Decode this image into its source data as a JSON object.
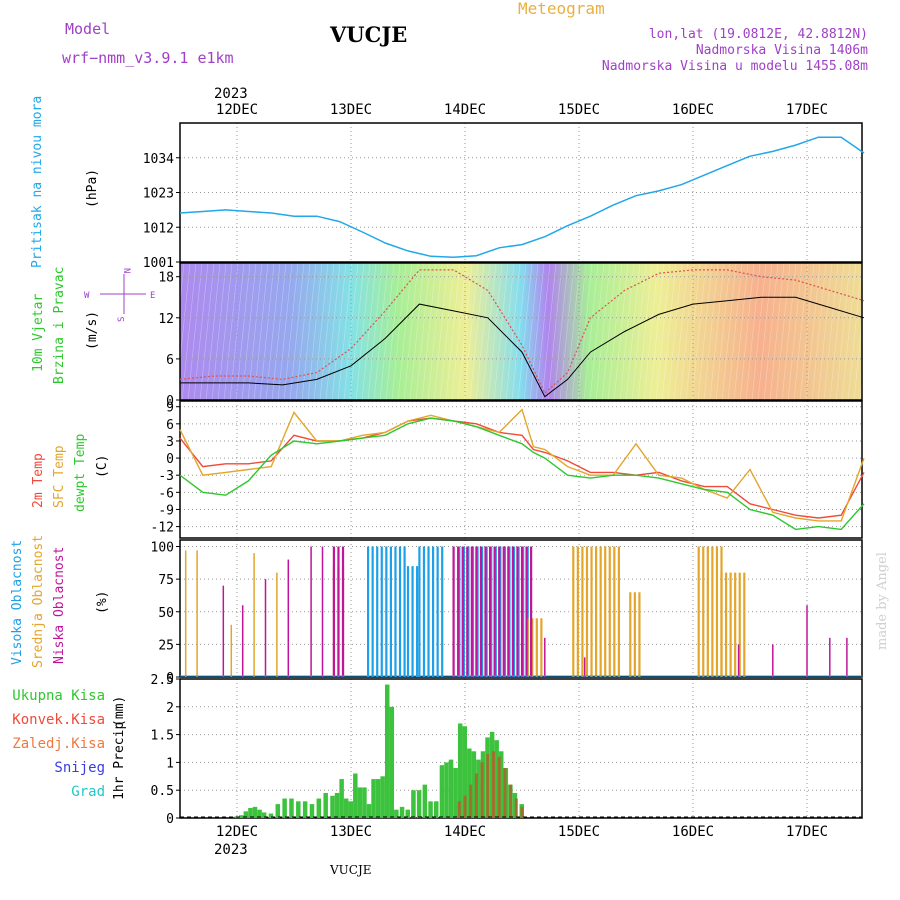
{
  "header": {
    "model_label": "Model",
    "model_name": "wrf−nmm_v3.9.1  e1km",
    "station": "VUCJE",
    "product": "Meteogram",
    "lonlat": "lon,lat (19.0812E, 42.8812N)",
    "elevation": "Nadmorska Visina 1406m",
    "model_elevation": "Nadmorska Visina u modelu 1455.08m",
    "year_top": "2023",
    "year_bottom": "2023",
    "bottom_station": "VUCJE",
    "watermark": "made by Angel"
  },
  "colors": {
    "pressure": "#22a7e8",
    "temp": "#f04a3a",
    "sfc": "#e3a52c",
    "dew": "#2ec82e",
    "high": "#1ea0e8",
    "mid": "#e3a52c",
    "low": "#c0149a",
    "rain": "#3cc23c",
    "conv": "#b0602a",
    "purple": "#a040c8"
  },
  "chart_data": [
    {
      "type": "line",
      "panel": "pressure",
      "ylabel_line1": "Pritisak na nivou mora",
      "ylabel_line2": "(hPa)",
      "x_days": [
        "12DEC",
        "13DEC",
        "14DEC",
        "15DEC",
        "16DEC",
        "17DEC"
      ],
      "ylim": [
        1001,
        1045
      ],
      "yticks": [
        1001,
        1012,
        1023,
        1034
      ],
      "series": [
        {
          "x": [
            -0.5,
            -0.3,
            -0.1,
            0.1,
            0.3,
            0.5,
            0.7,
            0.9,
            1.1,
            1.3,
            1.5,
            1.7,
            1.9,
            2.1,
            2.3,
            2.5,
            2.7,
            2.9,
            3.1,
            3.3,
            3.5,
            3.7,
            3.9,
            4.1,
            4.3,
            4.5,
            4.7,
            4.9,
            5.1,
            5.3,
            5.5
          ],
          "values": [
            1016.5,
            1017,
            1017.5,
            1017,
            1016.5,
            1015.5,
            1015.5,
            1013.8,
            1010.5,
            1007,
            1004.5,
            1002.8,
            1002.5,
            1003,
            1005.5,
            1006.5,
            1009,
            1012.5,
            1015.5,
            1019,
            1022,
            1023.5,
            1025.5,
            1028.5,
            1031.5,
            1034.5,
            1036,
            1038,
            1040.5,
            1040.5,
            1035.5
          ]
        }
      ]
    },
    {
      "type": "line",
      "panel": "wind",
      "ylabel_line1": "10m Vjetar",
      "ylabel_line2": "Brzina i Pravac",
      "ylabel_line3": "(m/s)",
      "compass_left": "W",
      "compass_right": "E",
      "compass_top": "N",
      "compass_bottom": "S",
      "ylim": [
        0,
        20
      ],
      "yticks": [
        0,
        6,
        12,
        18
      ],
      "series": [
        {
          "name": "speed",
          "x": [
            -0.5,
            -0.2,
            0.1,
            0.4,
            0.7,
            1.0,
            1.3,
            1.6,
            1.9,
            2.2,
            2.5,
            2.7,
            2.9,
            3.1,
            3.4,
            3.7,
            4.0,
            4.3,
            4.6,
            4.9,
            5.2,
            5.5
          ],
          "values": [
            2.5,
            2.5,
            2.5,
            2.2,
            3,
            5,
            9,
            14,
            13,
            12,
            7,
            0.5,
            3,
            7,
            10,
            12.5,
            14,
            14.5,
            15,
            15,
            13.5,
            12
          ]
        },
        {
          "name": "gust",
          "x": [
            -0.5,
            -0.2,
            0.1,
            0.4,
            0.7,
            1.0,
            1.3,
            1.6,
            1.9,
            2.2,
            2.5,
            2.7,
            2.9,
            3.1,
            3.4,
            3.7,
            4.0,
            4.3,
            4.6,
            4.9,
            5.2,
            5.5
          ],
          "values": [
            3,
            3.5,
            3.5,
            3,
            4,
            7.5,
            13,
            19,
            19,
            16,
            8,
            1,
            4,
            12,
            16,
            18.5,
            19,
            19,
            18,
            17.5,
            16,
            14.5
          ]
        }
      ]
    },
    {
      "type": "line",
      "panel": "temperature",
      "ylabel_2m": "2m Temp",
      "ylabel_sfc": "SFC Temp",
      "ylabel_dew": "dewpt Temp",
      "ylabel_unit": "(C)",
      "ylim": [
        -14,
        10
      ],
      "yticks": [
        -12,
        -9,
        -6,
        -3,
        0,
        3,
        6,
        9
      ],
      "series": [
        {
          "name": "2m",
          "x": [
            -0.5,
            -0.3,
            -0.1,
            0.1,
            0.3,
            0.5,
            0.7,
            0.9,
            1.1,
            1.3,
            1.5,
            1.7,
            1.9,
            2.1,
            2.3,
            2.5,
            2.6,
            2.7,
            2.9,
            3.1,
            3.3,
            3.5,
            3.7,
            3.9,
            4.1,
            4.3,
            4.5,
            4.7,
            4.9,
            5.1,
            5.3,
            5.5
          ],
          "values": [
            3.5,
            -1.5,
            -1,
            -1,
            -0.5,
            4,
            3,
            3,
            3.5,
            4.5,
            6.5,
            7,
            6.5,
            6,
            4.5,
            4,
            1.5,
            1,
            -0.5,
            -2.5,
            -2.5,
            -3,
            -2.5,
            -4,
            -5,
            -5,
            -8,
            -9,
            -10,
            -10.5,
            -10,
            -2.5
          ]
        },
        {
          "name": "sfc",
          "x": [
            -0.5,
            -0.3,
            -0.1,
            0.1,
            0.3,
            0.5,
            0.7,
            0.9,
            1.1,
            1.3,
            1.5,
            1.7,
            1.9,
            2.1,
            2.3,
            2.5,
            2.6,
            2.7,
            2.9,
            3.1,
            3.3,
            3.5,
            3.7,
            3.9,
            4.1,
            4.3,
            4.5,
            4.7,
            4.9,
            5.1,
            5.3,
            5.5
          ],
          "values": [
            5,
            -3,
            -2.5,
            -2,
            -1.5,
            8,
            3,
            3,
            4,
            4.5,
            6.5,
            7.5,
            6.5,
            5.5,
            4.5,
            8.5,
            2,
            1.5,
            -1.5,
            -3,
            -3,
            2.5,
            -3,
            -3.5,
            -5.5,
            -7,
            -2,
            -9.5,
            -10.5,
            -11,
            -11,
            0
          ]
        },
        {
          "name": "dewpt",
          "x": [
            -0.5,
            -0.3,
            -0.1,
            0.1,
            0.3,
            0.5,
            0.7,
            0.9,
            1.1,
            1.3,
            1.5,
            1.7,
            1.9,
            2.1,
            2.3,
            2.5,
            2.6,
            2.7,
            2.9,
            3.1,
            3.3,
            3.5,
            3.7,
            3.9,
            4.1,
            4.3,
            4.5,
            4.7,
            4.9,
            5.1,
            5.3,
            5.5
          ],
          "values": [
            -3,
            -6,
            -6.5,
            -4,
            0.5,
            3,
            2.5,
            3,
            3.5,
            4,
            6,
            7,
            6.5,
            5.5,
            4,
            2.5,
            1,
            0,
            -3,
            -3.5,
            -3,
            -3,
            -3.5,
            -4.5,
            -5.5,
            -6,
            -9,
            -10,
            -12.5,
            -12,
            -12.5,
            -8
          ]
        }
      ]
    },
    {
      "type": "bar",
      "panel": "cloud",
      "ylabel_high": "Visoka Oblacnost",
      "ylabel_mid": "Srednja Oblacnost",
      "ylabel_low": "Niska Oblacnost",
      "ylabel_unit": "(%)",
      "ylim": [
        0,
        105
      ],
      "yticks": [
        0,
        25,
        50,
        75,
        100
      ],
      "series": [
        {
          "name": "high",
          "segments": [
            [
              1.15,
              1.5,
              100
            ],
            [
              1.5,
              1.6,
              85
            ],
            [
              1.6,
              1.8,
              100
            ],
            [
              1.95,
              2.55,
              100
            ]
          ]
        },
        {
          "name": "mid",
          "segments": [
            [
              -0.45,
              -0.45,
              97
            ],
            [
              -0.35,
              -0.35,
              97
            ],
            [
              -0.05,
              -0.05,
              40
            ],
            [
              0.15,
              0.15,
              95
            ],
            [
              0.35,
              0.35,
              80
            ],
            [
              0.85,
              0.95,
              85
            ],
            [
              2.55,
              2.7,
              45
            ],
            [
              2.95,
              3.35,
              100
            ],
            [
              3.45,
              3.55,
              65
            ],
            [
              4.05,
              4.25,
              100
            ],
            [
              4.25,
              4.45,
              80
            ]
          ]
        },
        {
          "name": "low",
          "segments": [
            [
              -0.12,
              -0.12,
              70
            ],
            [
              0.05,
              0.05,
              55
            ],
            [
              0.25,
              0.25,
              75
            ],
            [
              0.45,
              0.45,
              90
            ],
            [
              0.65,
              0.65,
              100
            ],
            [
              0.75,
              0.75,
              100
            ],
            [
              0.85,
              0.95,
              100
            ],
            [
              1.9,
              2.6,
              100
            ],
            [
              2.7,
              2.7,
              30
            ],
            [
              3.05,
              3.05,
              15
            ],
            [
              4.4,
              4.4,
              25
            ],
            [
              4.7,
              4.7,
              25
            ],
            [
              5.0,
              5.0,
              55
            ],
            [
              5.2,
              5.2,
              30
            ],
            [
              5.35,
              5.35,
              30
            ]
          ]
        }
      ]
    },
    {
      "type": "bar",
      "panel": "precip",
      "ylabel_line1": "1hr Precip",
      "ylabel_line2": "(mm)",
      "legend": [
        "Ukupna Kisa",
        "Konvek.Kisa",
        "Zaledj.Kisa",
        "Snijeg",
        "Grad"
      ],
      "ylim": [
        0,
        2.5
      ],
      "yticks": [
        0,
        0.5,
        1,
        1.5,
        2,
        2.5
      ],
      "series": [
        {
          "name": "Ukupna Kisa",
          "x": [
            0.0,
            0.04,
            0.08,
            0.12,
            0.16,
            0.2,
            0.24,
            0.3,
            0.36,
            0.42,
            0.48,
            0.54,
            0.6,
            0.66,
            0.72,
            0.78,
            0.84,
            0.88,
            0.92,
            0.96,
            1.0,
            1.04,
            1.08,
            1.12,
            1.16,
            1.2,
            1.24,
            1.28,
            1.32,
            1.36,
            1.4,
            1.45,
            1.5,
            1.55,
            1.6,
            1.65,
            1.7,
            1.75,
            1.8,
            1.84,
            1.88,
            1.92,
            1.96,
            2.0,
            2.04,
            2.08,
            2.12,
            2.16,
            2.2,
            2.24,
            2.28,
            2.32,
            2.36,
            2.4,
            2.44,
            2.5
          ],
          "values": [
            0.03,
            0.05,
            0.12,
            0.18,
            0.2,
            0.15,
            0.1,
            0.08,
            0.25,
            0.35,
            0.35,
            0.3,
            0.3,
            0.25,
            0.35,
            0.45,
            0.4,
            0.45,
            0.7,
            0.35,
            0.3,
            0.8,
            0.55,
            0.55,
            0.25,
            0.7,
            0.7,
            0.75,
            2.4,
            2.0,
            0.15,
            0.2,
            0.15,
            0.5,
            0.5,
            0.6,
            0.3,
            0.3,
            0.95,
            1.0,
            1.05,
            0.9,
            1.7,
            1.65,
            1.25,
            1.2,
            1.05,
            1.2,
            1.45,
            1.55,
            1.4,
            1.2,
            0.9,
            0.6,
            0.45,
            0.25
          ]
        },
        {
          "name": "Konvek.Kisa",
          "x": [
            1.95,
            2.0,
            2.05,
            2.1,
            2.15,
            2.2,
            2.25,
            2.3,
            2.35,
            2.4,
            2.45,
            2.5
          ],
          "values": [
            0.3,
            0.4,
            0.6,
            0.8,
            1.0,
            1.15,
            1.2,
            1.1,
            0.9,
            0.6,
            0.35,
            0.2
          ]
        }
      ]
    }
  ]
}
